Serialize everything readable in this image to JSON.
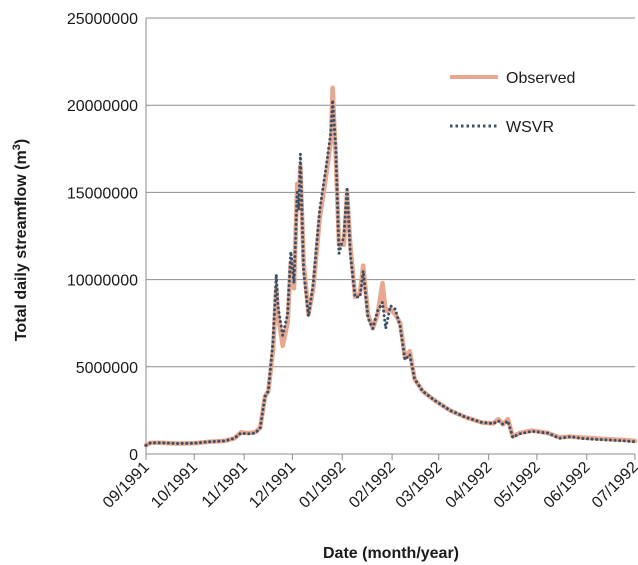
{
  "chart_data": {
    "type": "line",
    "title": "",
    "xlabel": "Date (month/year)",
    "ylabel": "Total daily streamflow (m",
    "ylabel_superscript": "3",
    "ylabel_suffix": ")",
    "ylim": [
      0,
      25000000
    ],
    "yticks": [
      0,
      5000000,
      10000000,
      15000000,
      20000000,
      25000000
    ],
    "ytick_labels": [
      "0",
      "5000000",
      "10000000",
      "15000000",
      "20000000",
      "25000000"
    ],
    "xlim": [
      "1991-09-01",
      "1992-07-01"
    ],
    "xticks": [
      "1991-09-01",
      "1991-10-01",
      "1991-11-01",
      "1991-12-01",
      "1992-01-01",
      "1992-02-01",
      "1992-03-01",
      "1992-04-01",
      "1992-05-01",
      "1992-06-01",
      "1992-07-01"
    ],
    "xtick_labels": [
      "09/1991",
      "10/1991",
      "11/1991",
      "12/1991",
      "01/1992",
      "02/1992",
      "03/1992",
      "04/1992",
      "05/1992",
      "06/1992",
      "07/1992"
    ],
    "grid": "horizontal",
    "legend_position": "top-right",
    "series": [
      {
        "name": "Observed",
        "color": "#e8a890",
        "style": "solid",
        "points": [
          [
            "1991-09-01",
            500000
          ],
          [
            "1991-09-04",
            650000
          ],
          [
            "1991-09-10",
            650000
          ],
          [
            "1991-09-20",
            600000
          ],
          [
            "1991-10-01",
            620000
          ],
          [
            "1991-10-10",
            700000
          ],
          [
            "1991-10-20",
            750000
          ],
          [
            "1991-10-26",
            900000
          ],
          [
            "1991-10-30",
            1250000
          ],
          [
            "1991-11-03",
            1200000
          ],
          [
            "1991-11-08",
            1250000
          ],
          [
            "1991-11-11",
            1500000
          ],
          [
            "1991-11-14",
            3300000
          ],
          [
            "1991-11-16",
            3600000
          ],
          [
            "1991-11-19",
            6000000
          ],
          [
            "1991-11-21",
            9500000
          ],
          [
            "1991-11-22",
            8000000
          ],
          [
            "1991-11-25",
            6200000
          ],
          [
            "1991-11-28",
            7500000
          ],
          [
            "1991-11-30",
            11000000
          ],
          [
            "1991-12-02",
            9500000
          ],
          [
            "1991-12-04",
            15500000
          ],
          [
            "1991-12-05",
            14500000
          ],
          [
            "1991-12-06",
            16500000
          ],
          [
            "1991-12-08",
            11000000
          ],
          [
            "1991-12-11",
            8000000
          ],
          [
            "1991-12-14",
            9500000
          ],
          [
            "1991-12-18",
            13500000
          ],
          [
            "1991-12-22",
            16000000
          ],
          [
            "1991-12-25",
            18000000
          ],
          [
            "1991-12-26",
            21000000
          ],
          [
            "1991-12-28",
            17000000
          ],
          [
            "1991-12-30",
            12000000
          ],
          [
            "1992-01-02",
            12000000
          ],
          [
            "1992-01-04",
            15000000
          ],
          [
            "1992-01-06",
            12000000
          ],
          [
            "1992-01-09",
            9000000
          ],
          [
            "1992-01-12",
            9200000
          ],
          [
            "1992-01-14",
            10800000
          ],
          [
            "1992-01-17",
            8000000
          ],
          [
            "1992-01-20",
            7200000
          ],
          [
            "1992-01-23",
            8000000
          ],
          [
            "1992-01-26",
            9800000
          ],
          [
            "1992-01-28",
            8200000
          ],
          [
            "1992-01-31",
            8300000
          ],
          [
            "1992-02-03",
            8000000
          ],
          [
            "1992-02-06",
            7500000
          ],
          [
            "1992-02-09",
            5500000
          ],
          [
            "1992-02-12",
            5900000
          ],
          [
            "1992-02-15",
            4300000
          ],
          [
            "1992-02-20",
            3600000
          ],
          [
            "1992-02-27",
            3100000
          ],
          [
            "1992-03-08",
            2500000
          ],
          [
            "1992-03-18",
            2100000
          ],
          [
            "1992-03-28",
            1800000
          ],
          [
            "1992-04-04",
            1750000
          ],
          [
            "1992-04-07",
            2000000
          ],
          [
            "1992-04-10",
            1700000
          ],
          [
            "1992-04-13",
            2000000
          ],
          [
            "1992-04-16",
            1000000
          ],
          [
            "1992-04-20",
            1200000
          ],
          [
            "1992-04-28",
            1350000
          ],
          [
            "1992-05-08",
            1200000
          ],
          [
            "1992-05-15",
            950000
          ],
          [
            "1992-05-22",
            1000000
          ],
          [
            "1992-05-28",
            950000
          ],
          [
            "1992-06-05",
            900000
          ],
          [
            "1992-06-15",
            850000
          ],
          [
            "1992-06-25",
            800000
          ],
          [
            "1992-07-01",
            750000
          ]
        ]
      },
      {
        "name": "WSVR",
        "color": "#3d5166",
        "style": "dotted",
        "points": [
          [
            "1991-09-01",
            500000
          ],
          [
            "1991-09-04",
            650000
          ],
          [
            "1991-09-10",
            650000
          ],
          [
            "1991-09-20",
            600000
          ],
          [
            "1991-10-01",
            620000
          ],
          [
            "1991-10-10",
            700000
          ],
          [
            "1991-10-20",
            750000
          ],
          [
            "1991-10-26",
            900000
          ],
          [
            "1991-10-30",
            1200000
          ],
          [
            "1991-11-03",
            1150000
          ],
          [
            "1991-11-08",
            1200000
          ],
          [
            "1991-11-11",
            1500000
          ],
          [
            "1991-11-14",
            3300000
          ],
          [
            "1991-11-16",
            3600000
          ],
          [
            "1991-11-19",
            6500000
          ],
          [
            "1991-11-21",
            10300000
          ],
          [
            "1991-11-22",
            8500000
          ],
          [
            "1991-11-25",
            6800000
          ],
          [
            "1991-11-28",
            8000000
          ],
          [
            "1991-11-30",
            11600000
          ],
          [
            "1991-12-02",
            9800000
          ],
          [
            "1991-12-04",
            15000000
          ],
          [
            "1991-12-05",
            14000000
          ],
          [
            "1991-12-06",
            17200000
          ],
          [
            "1991-12-08",
            10500000
          ],
          [
            "1991-12-11",
            7900000
          ],
          [
            "1991-12-14",
            9800000
          ],
          [
            "1991-12-18",
            14000000
          ],
          [
            "1991-12-22",
            16500000
          ],
          [
            "1991-12-25",
            18500000
          ],
          [
            "1991-12-26",
            20300000
          ],
          [
            "1991-12-28",
            17500000
          ],
          [
            "1991-12-30",
            11500000
          ],
          [
            "1992-01-02",
            12500000
          ],
          [
            "1992-01-04",
            15300000
          ],
          [
            "1992-01-06",
            11500000
          ],
          [
            "1992-01-09",
            9000000
          ],
          [
            "1992-01-12",
            9000000
          ],
          [
            "1992-01-14",
            10500000
          ],
          [
            "1992-01-17",
            7800000
          ],
          [
            "1992-01-20",
            7200000
          ],
          [
            "1992-01-23",
            8200000
          ],
          [
            "1992-01-26",
            8700000
          ],
          [
            "1992-01-28",
            7200000
          ],
          [
            "1992-01-31",
            8500000
          ],
          [
            "1992-02-03",
            8300000
          ],
          [
            "1992-02-06",
            7300000
          ],
          [
            "1992-02-09",
            5400000
          ],
          [
            "1992-02-12",
            5700000
          ],
          [
            "1992-02-15",
            4300000
          ],
          [
            "1992-02-20",
            3600000
          ],
          [
            "1992-02-27",
            3100000
          ],
          [
            "1992-03-08",
            2500000
          ],
          [
            "1992-03-18",
            2100000
          ],
          [
            "1992-03-28",
            1800000
          ],
          [
            "1992-04-04",
            1750000
          ],
          [
            "1992-04-07",
            1900000
          ],
          [
            "1992-04-10",
            1700000
          ],
          [
            "1992-04-13",
            1900000
          ],
          [
            "1992-04-16",
            950000
          ],
          [
            "1992-04-20",
            1150000
          ],
          [
            "1992-04-28",
            1300000
          ],
          [
            "1992-05-08",
            1200000
          ],
          [
            "1992-05-15",
            900000
          ],
          [
            "1992-05-22",
            1000000
          ],
          [
            "1992-05-28",
            900000
          ],
          [
            "1992-06-05",
            850000
          ],
          [
            "1992-06-15",
            800000
          ],
          [
            "1992-06-25",
            750000
          ],
          [
            "1992-07-01",
            700000
          ]
        ]
      }
    ]
  }
}
